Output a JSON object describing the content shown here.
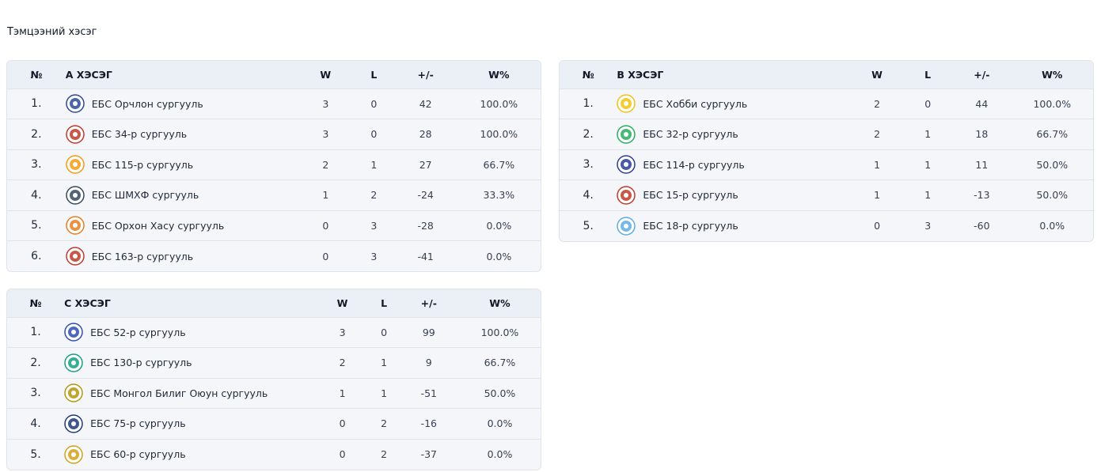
{
  "page": {
    "title": "Тэмцээний хэсэг"
  },
  "columns": {
    "rank": "№",
    "w": "W",
    "l": "L",
    "diff": "+/-",
    "pct": "W%"
  },
  "groups": [
    {
      "name": "А ХЭСЭГ",
      "teams": [
        {
          "rank": "1.",
          "name": "ЕБС Орчлон сургууль",
          "w": "3",
          "l": "0",
          "diff": "42",
          "pct": "100.0%",
          "icon": "orchlon-logo-icon",
          "color": "#2b4a9a"
        },
        {
          "rank": "2.",
          "name": "ЕБС 34-р сургууль",
          "w": "3",
          "l": "0",
          "diff": "28",
          "pct": "100.0%",
          "icon": "school-34-logo-icon",
          "color": "#c0392b"
        },
        {
          "rank": "3.",
          "name": "ЕБС 115-р сургууль",
          "w": "2",
          "l": "1",
          "diff": "27",
          "pct": "66.7%",
          "icon": "school-115-logo-icon",
          "color": "#f39c12"
        },
        {
          "rank": "4.",
          "name": "ЕБС ШМХФ сургууль",
          "w": "1",
          "l": "2",
          "diff": "-24",
          "pct": "33.3%",
          "icon": "shmkhf-logo-icon",
          "color": "#34495e"
        },
        {
          "rank": "5.",
          "name": "ЕБС Орхон Хасу сургууль",
          "w": "0",
          "l": "3",
          "diff": "-28",
          "pct": "0.0%",
          "icon": "orkhon-khasu-logo-icon",
          "color": "#e67e22"
        },
        {
          "rank": "6.",
          "name": "ЕБС 163-р сургууль",
          "w": "0",
          "l": "3",
          "diff": "-41",
          "pct": "0.0%",
          "icon": "school-163-logo-icon",
          "color": "#c0392b"
        }
      ]
    },
    {
      "name": "В ХЭСЭГ",
      "teams": [
        {
          "rank": "1.",
          "name": "ЕБС Хобби сургууль",
          "w": "2",
          "l": "0",
          "diff": "44",
          "pct": "100.0%",
          "icon": "hobby-logo-icon",
          "color": "#f1c40f"
        },
        {
          "rank": "2.",
          "name": "ЕБС 32-р сургууль",
          "w": "2",
          "l": "1",
          "diff": "18",
          "pct": "66.7%",
          "icon": "school-32-logo-icon",
          "color": "#27ae60"
        },
        {
          "rank": "3.",
          "name": "ЕБС 114-р сургууль",
          "w": "1",
          "l": "1",
          "diff": "11",
          "pct": "50.0%",
          "icon": "school-114-logo-icon",
          "color": "#2c3e90"
        },
        {
          "rank": "4.",
          "name": "ЕБС 15-р сургууль",
          "w": "1",
          "l": "1",
          "diff": "-13",
          "pct": "50.0%",
          "icon": "school-15-logo-icon",
          "color": "#c0392b"
        },
        {
          "rank": "5.",
          "name": "ЕБС 18-р сургууль",
          "w": "0",
          "l": "3",
          "diff": "-60",
          "pct": "0.0%",
          "icon": "school-18-logo-icon",
          "color": "#5dade2"
        }
      ]
    },
    {
      "name": "С ХЭСЭГ",
      "teams": [
        {
          "rank": "1.",
          "name": "ЕБС 52-р сургууль",
          "w": "3",
          "l": "0",
          "diff": "99",
          "pct": "100.0%",
          "icon": "school-52-logo-icon",
          "color": "#2e4fb0"
        },
        {
          "rank": "2.",
          "name": "ЕБС 130-р сургууль",
          "w": "2",
          "l": "1",
          "diff": "9",
          "pct": "66.7%",
          "icon": "school-130-logo-icon",
          "color": "#16a085"
        },
        {
          "rank": "3.",
          "name": "ЕБС Монгол Билиг Оюун сургууль",
          "w": "1",
          "l": "1",
          "diff": "-51",
          "pct": "50.0%",
          "icon": "mongol-bilig-logo-icon",
          "color": "#b7950b"
        },
        {
          "rank": "4.",
          "name": "ЕБС 75-р сургууль",
          "w": "0",
          "l": "2",
          "diff": "-16",
          "pct": "0.0%",
          "icon": "school-75-logo-icon",
          "color": "#1f3a7a"
        },
        {
          "rank": "5.",
          "name": "ЕБС 60-р сургууль",
          "w": "0",
          "l": "2",
          "diff": "-37",
          "pct": "0.0%",
          "icon": "school-60-logo-icon",
          "color": "#d4a017"
        }
      ]
    }
  ]
}
